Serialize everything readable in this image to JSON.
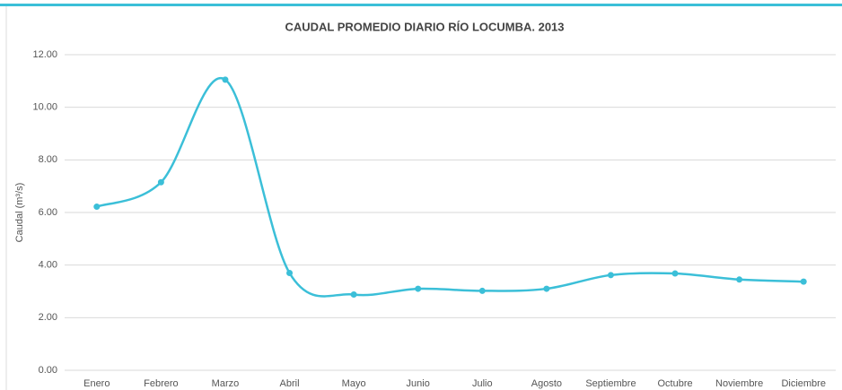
{
  "chart_data": {
    "type": "line",
    "title": "CAUDAL PROMEDIO DIARIO RÍO LOCUMBA. 2013",
    "y_label": "Caudal (m³/s)",
    "categories": [
      "Enero",
      "Febrero",
      "Marzo",
      "Abril",
      "Mayo",
      "Junio",
      "Julio",
      "Agosto",
      "Septiembre",
      "Octubre",
      "Noviembre",
      "Diciembre"
    ],
    "series": [
      {
        "name": "Caudal",
        "color": "#3bbfd8",
        "values": [
          6.22,
          7.15,
          11.05,
          3.7,
          2.88,
          3.1,
          3.02,
          3.1,
          3.62,
          3.68,
          3.45,
          3.37
        ]
      }
    ],
    "ylim": [
      0,
      12
    ],
    "yticks": [
      {
        "value": 0,
        "label": "0.00"
      },
      {
        "value": 2,
        "label": "2.00"
      },
      {
        "value": 4,
        "label": "4.00"
      },
      {
        "value": 6,
        "label": "6.00"
      },
      {
        "value": 8,
        "label": "8.00"
      },
      {
        "value": 10,
        "label": "10.00"
      },
      {
        "value": 12,
        "label": "12.00"
      }
    ],
    "grid": true
  }
}
